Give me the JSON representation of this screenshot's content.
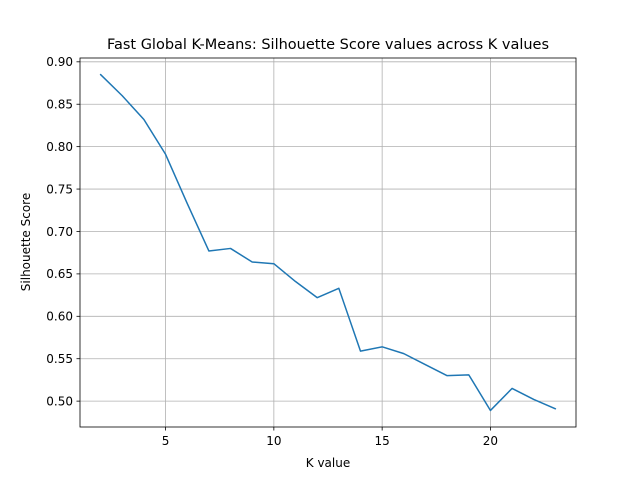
{
  "chart_data": {
    "type": "line",
    "title": "Fast Global K-Means: Silhouette Score values across K values",
    "xlabel": "K value",
    "ylabel": "Silhouette Score",
    "xlim": [
      1.05,
      23.95
    ],
    "ylim": [
      0.4695,
      0.9045
    ],
    "xticks": [
      5,
      10,
      15,
      20
    ],
    "xtick_labels": [
      "5",
      "10",
      "15",
      "20"
    ],
    "yticks": [
      0.5,
      0.55,
      0.6,
      0.65,
      0.7,
      0.75,
      0.8,
      0.85,
      0.9
    ],
    "ytick_labels": [
      "0.50",
      "0.55",
      "0.60",
      "0.65",
      "0.70",
      "0.75",
      "0.80",
      "0.85",
      "0.90"
    ],
    "grid": true,
    "series": [
      {
        "color": "#1f77b4",
        "x": [
          2,
          3,
          4,
          5,
          6,
          7,
          8,
          9,
          10,
          11,
          12,
          13,
          14,
          15,
          16,
          17,
          18,
          19,
          20,
          21,
          22,
          23
        ],
        "values": [
          0.885,
          0.86,
          0.832,
          0.791,
          0.733,
          0.677,
          0.68,
          0.664,
          0.662,
          0.641,
          0.622,
          0.633,
          0.559,
          0.564,
          0.556,
          0.543,
          0.53,
          0.531,
          0.489,
          0.515,
          0.502,
          0.491
        ]
      }
    ]
  }
}
